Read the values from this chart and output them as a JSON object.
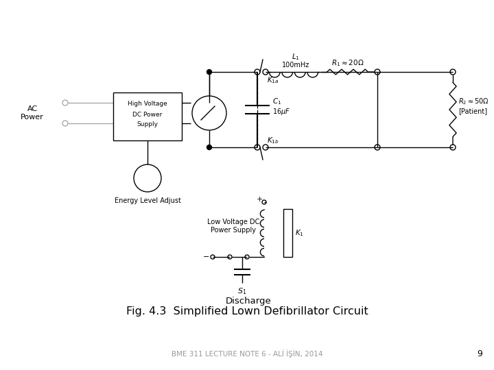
{
  "title": "Fig. 4.3  Simplified Lown Defibrillator Circuit",
  "footer": "BME 311 LECTURE NOTE 6 - ALİ İŞİN, 2014",
  "page_num": "9",
  "bg_color": "#ffffff",
  "line_color": "#000000",
  "gray_color": "#999999",
  "light_gray": "#aaaaaa"
}
